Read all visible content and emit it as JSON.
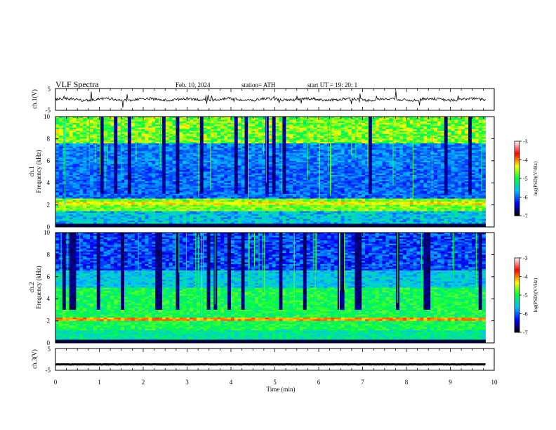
{
  "header": {
    "title": "VLF  Spectra",
    "date": "Feb. 10, 2024",
    "station": "station= ATH",
    "start_ut": "start  UT  =    19: 20: 1"
  },
  "chart_data": [
    {
      "type": "line",
      "panel": "ch1-waveform",
      "ylabel": "ch.1(V)",
      "yticks": [
        "5",
        "-5"
      ],
      "ylim": [
        -5,
        5
      ],
      "xlim": [
        0,
        10
      ],
      "x_extent": [
        0,
        9.8
      ],
      "baseline_level": 0,
      "color": "#000000"
    },
    {
      "type": "heatmap",
      "panel": "ch1-spectrogram",
      "ylabel": "ch.1\nFrequency  (kHz)",
      "ylabel_line1": "ch.1",
      "ylabel_line2": "Frequency  (kHz)",
      "yticks": [
        "0",
        "2",
        "4",
        "6",
        "8",
        "10"
      ],
      "ylim": [
        0,
        10
      ],
      "xlim": [
        0,
        10
      ],
      "x_extent": [
        0,
        9.8
      ],
      "colorbar": {
        "label": "log(PSD)(V²/Hz)",
        "ticks": [
          "-3",
          "-4",
          "-5",
          "-6",
          "-7"
        ],
        "range": [
          -7,
          -3
        ],
        "colors": [
          "#000000",
          "#0000ff",
          "#00c0ff",
          "#00ff40",
          "#ffff00",
          "#ff0000",
          "#ffffff"
        ]
      }
    },
    {
      "type": "heatmap",
      "panel": "ch2-spectrogram",
      "ylabel": "ch.2\nFrequency  (kHz)",
      "ylabel_line1": "ch.2",
      "ylabel_line2": "Frequency  (kHz)",
      "yticks": [
        "0",
        "2",
        "4",
        "6",
        "8",
        "10"
      ],
      "ylim": [
        0,
        10
      ],
      "xlim": [
        0,
        10
      ],
      "x_extent": [
        0,
        9.8
      ],
      "colorbar": {
        "label": "log(PSD)(V²/Hz)",
        "ticks": [
          "-3",
          "-4",
          "-5",
          "-6",
          "-7"
        ],
        "range": [
          -7,
          -3
        ],
        "colors": [
          "#000000",
          "#0000ff",
          "#00c0ff",
          "#00ff40",
          "#ffff00",
          "#ff0000",
          "#ffffff"
        ]
      }
    },
    {
      "type": "line",
      "panel": "ch3-waveform",
      "ylabel": "ch.3(V)",
      "yticks": [
        "5",
        "-5"
      ],
      "ylim": [
        -5,
        5
      ],
      "xlim": [
        0,
        10
      ],
      "x_extent": [
        0,
        9.8
      ],
      "baseline_level": -2.3,
      "color": "#000000"
    }
  ],
  "x_axis": {
    "label": "Time  (min)",
    "ticks": [
      "0",
      "1",
      "2",
      "3",
      "4",
      "5",
      "6",
      "7",
      "8",
      "9",
      "10"
    ],
    "range": [
      0,
      10
    ]
  }
}
